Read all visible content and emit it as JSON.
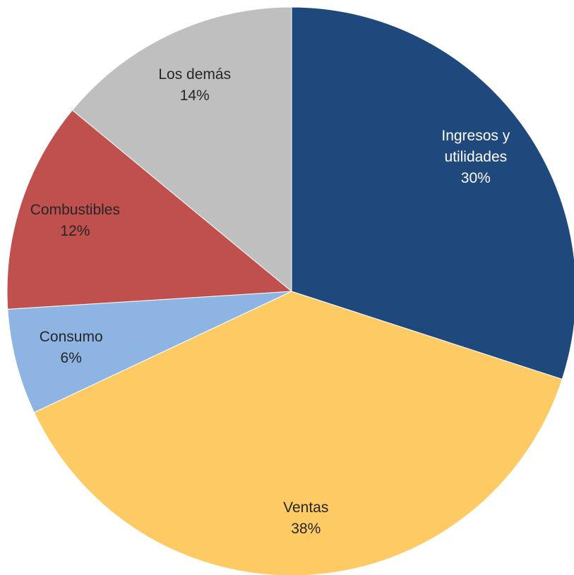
{
  "chart_data": {
    "type": "pie",
    "categories": [
      "Ingresos y utilidades",
      "Ventas",
      "Consumo",
      "Combustibles",
      "Los demás"
    ],
    "values": [
      30,
      38,
      6,
      12,
      14
    ],
    "value_labels": [
      "30%",
      "38%",
      "6%",
      "12%",
      "14%"
    ],
    "colors": [
      "#1f497d",
      "#fdca64",
      "#8eb4e3",
      "#c0504d",
      "#bfbfbf"
    ]
  }
}
